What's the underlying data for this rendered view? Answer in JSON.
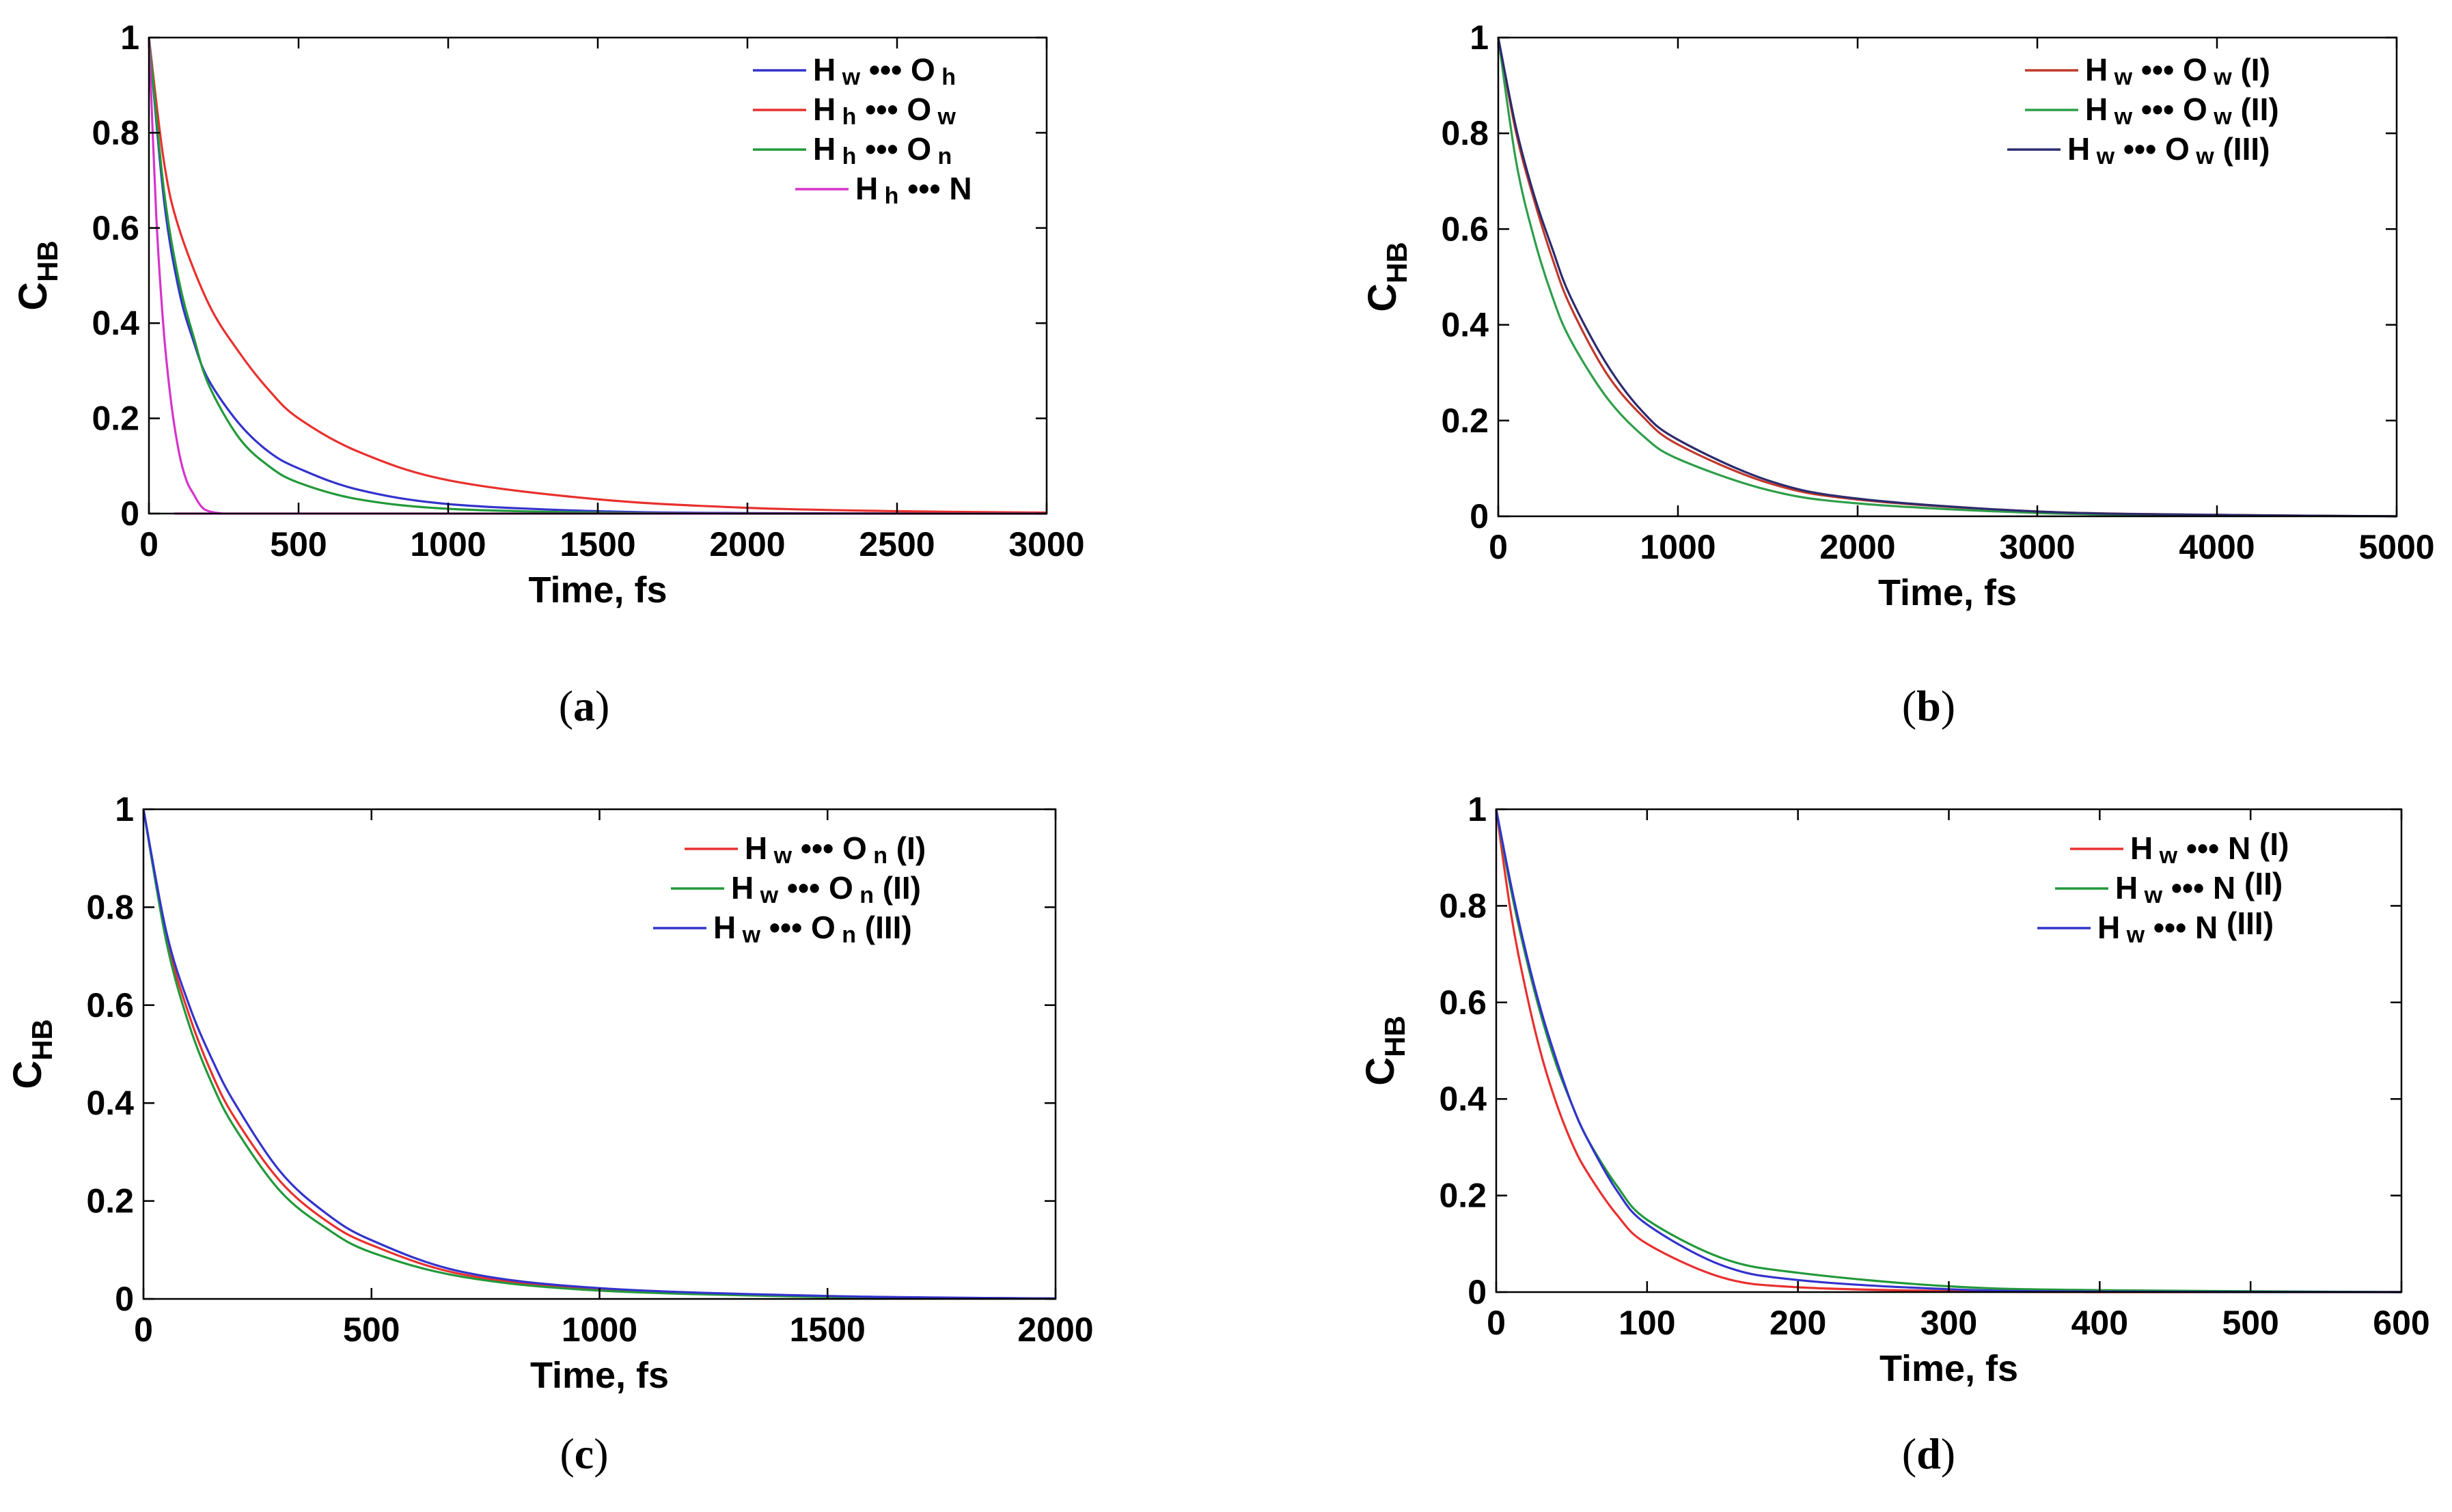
{
  "chart_data": [
    {
      "type": "line",
      "panel_label": "a",
      "xlabel": "Time, fs",
      "ylabel": "C",
      "ylabel_sub": "HB",
      "xlim": [
        0,
        3000
      ],
      "ylim": [
        0,
        1
      ],
      "xticks": [
        0,
        500,
        1000,
        1500,
        2000,
        2500,
        3000
      ],
      "yticks": [
        0,
        0.2,
        0.4,
        0.6,
        0.8,
        1
      ],
      "ytick_labels": [
        "0",
        "0.2",
        "0.4",
        "0.6",
        "0.8",
        "1"
      ],
      "legend_position": "top-right",
      "series": [
        {
          "name": "Hw•••Oh",
          "legend": {
            "a": "H",
            "as": "w",
            "b": "O",
            "bs": "h",
            "suffix": ""
          },
          "color": "#3333cc",
          "x": [
            0,
            50,
            100,
            150,
            200,
            300,
            400,
            500,
            700,
            1000,
            1500,
            2000,
            3000
          ],
          "y": [
            1.0,
            0.66,
            0.47,
            0.36,
            0.28,
            0.19,
            0.13,
            0.095,
            0.05,
            0.02,
            0.005,
            0.001,
            0.0
          ]
        },
        {
          "name": "Hh•••Ow",
          "legend": {
            "a": "H",
            "as": "h",
            "b": "O",
            "bs": "w",
            "suffix": ""
          },
          "color": "#e8302e",
          "x": [
            0,
            50,
            100,
            200,
            300,
            400,
            500,
            700,
            1000,
            1500,
            2000,
            2500,
            3000
          ],
          "y": [
            1.0,
            0.74,
            0.6,
            0.44,
            0.34,
            0.26,
            0.2,
            0.13,
            0.07,
            0.03,
            0.012,
            0.005,
            0.002
          ]
        },
        {
          "name": "Hh•••On",
          "legend": {
            "a": "H",
            "as": "h",
            "b": "O",
            "bs": "n",
            "suffix": ""
          },
          "color": "#22993a",
          "x": [
            0,
            50,
            100,
            150,
            200,
            300,
            400,
            500,
            700,
            1000,
            1500,
            2000,
            3000
          ],
          "y": [
            1.0,
            0.68,
            0.49,
            0.37,
            0.27,
            0.16,
            0.1,
            0.065,
            0.03,
            0.01,
            0.002,
            0.0,
            0.0
          ]
        },
        {
          "name": "Hh•••N",
          "legend": {
            "a": "H",
            "as": "h",
            "b": "N",
            "bs": "",
            "suffix": ""
          },
          "color": "#d633cc",
          "x": [
            0,
            25,
            50,
            75,
            100,
            125,
            150,
            175,
            200,
            250,
            300,
            3000
          ],
          "y": [
            1.0,
            0.62,
            0.38,
            0.23,
            0.13,
            0.07,
            0.04,
            0.015,
            0.005,
            0.0,
            0.0,
            0.0
          ]
        }
      ]
    },
    {
      "type": "line",
      "panel_label": "b",
      "xlabel": "Time, fs",
      "ylabel": "C",
      "ylabel_sub": "HB",
      "xlim": [
        0,
        5000
      ],
      "ylim": [
        0,
        1
      ],
      "xticks": [
        0,
        1000,
        2000,
        3000,
        4000,
        5000
      ],
      "yticks": [
        0,
        0.2,
        0.4,
        0.6,
        0.8,
        1
      ],
      "ytick_labels": [
        "0",
        "0.2",
        "0.4",
        "0.6",
        "0.8",
        "1"
      ],
      "legend_position": "top-right",
      "series": [
        {
          "name": "Hw•••Ow (I)",
          "legend": {
            "a": "H",
            "as": "w",
            "b": "O",
            "bs": "w",
            "suffix": "(I)"
          },
          "color": "#c0392b",
          "x": [
            0,
            100,
            200,
            300,
            400,
            600,
            800,
            1000,
            1500,
            2000,
            3000,
            4000,
            5000
          ],
          "y": [
            1.0,
            0.8,
            0.66,
            0.54,
            0.44,
            0.3,
            0.21,
            0.15,
            0.07,
            0.035,
            0.01,
            0.003,
            0.0
          ]
        },
        {
          "name": "Hw•••Ow (II)",
          "legend": {
            "a": "H",
            "as": "w",
            "b": "O",
            "bs": "w",
            "suffix": "(II)"
          },
          "color": "#2e9e4a",
          "x": [
            0,
            100,
            200,
            300,
            400,
            600,
            800,
            1000,
            1500,
            2000,
            3000,
            4000,
            5000
          ],
          "y": [
            1.0,
            0.74,
            0.58,
            0.46,
            0.37,
            0.25,
            0.17,
            0.12,
            0.055,
            0.027,
            0.007,
            0.002,
            0.0
          ]
        },
        {
          "name": "Hw•••Ow (III)",
          "legend": {
            "a": "H",
            "as": "w",
            "b": "O",
            "bs": "w",
            "suffix": "(III)"
          },
          "color": "#2b2b6e",
          "x": [
            0,
            100,
            200,
            300,
            400,
            600,
            800,
            1000,
            1500,
            2000,
            3000,
            4000,
            5000
          ],
          "y": [
            1.0,
            0.81,
            0.67,
            0.56,
            0.46,
            0.32,
            0.22,
            0.16,
            0.075,
            0.037,
            0.01,
            0.003,
            0.0
          ]
        }
      ]
    },
    {
      "type": "line",
      "panel_label": "c",
      "xlabel": "Time, fs",
      "ylabel": "C",
      "ylabel_sub": "HB",
      "xlim": [
        0,
        2000
      ],
      "ylim": [
        0,
        1
      ],
      "xticks": [
        0,
        500,
        1000,
        1500,
        2000
      ],
      "yticks": [
        0,
        0.2,
        0.4,
        0.6,
        0.8,
        1
      ],
      "ytick_labels": [
        "0",
        "0.2",
        "0.4",
        "0.6",
        "0.8",
        "1"
      ],
      "legend_position": "top-right",
      "series": [
        {
          "name": "Hw•••On (I)",
          "legend": {
            "a": "H",
            "as": "w",
            "b": "O",
            "bs": "n",
            "suffix": "(I)"
          },
          "color": "#e8302e",
          "x": [
            0,
            50,
            100,
            150,
            200,
            300,
            400,
            500,
            700,
            1000,
            1500,
            2000
          ],
          "y": [
            1.0,
            0.74,
            0.58,
            0.46,
            0.37,
            0.24,
            0.16,
            0.11,
            0.05,
            0.02,
            0.005,
            0.001
          ]
        },
        {
          "name": "Hw•••On (II)",
          "legend": {
            "a": "H",
            "as": "w",
            "b": "O",
            "bs": "n",
            "suffix": "(II)"
          },
          "color": "#22993a",
          "x": [
            0,
            50,
            100,
            150,
            200,
            300,
            400,
            500,
            700,
            1000,
            1500,
            2000
          ],
          "y": [
            1.0,
            0.73,
            0.56,
            0.44,
            0.35,
            0.22,
            0.145,
            0.095,
            0.045,
            0.017,
            0.004,
            0.001
          ]
        },
        {
          "name": "Hw•••On (III)",
          "legend": {
            "a": "H",
            "as": "w",
            "b": "O",
            "bs": "n",
            "suffix": "(III)"
          },
          "color": "#3333cc",
          "x": [
            0,
            50,
            100,
            150,
            200,
            300,
            400,
            500,
            700,
            1000,
            1500,
            2000
          ],
          "y": [
            1.0,
            0.75,
            0.6,
            0.49,
            0.4,
            0.26,
            0.175,
            0.12,
            0.055,
            0.022,
            0.006,
            0.001
          ]
        }
      ]
    },
    {
      "type": "line",
      "panel_label": "d",
      "xlabel": "Time, fs",
      "ylabel": "C",
      "ylabel_sub": "HB",
      "xlim": [
        0,
        600
      ],
      "ylim": [
        0,
        1
      ],
      "xticks": [
        0,
        100,
        200,
        300,
        400,
        500,
        600
      ],
      "yticks": [
        0,
        0.2,
        0.4,
        0.6,
        0.8,
        1
      ],
      "ytick_labels": [
        "0",
        "0.2",
        "0.4",
        "0.6",
        "0.8",
        "1"
      ],
      "legend_position": "top-right",
      "series": [
        {
          "name": "Hw•••N (I)",
          "legend": {
            "a": "H",
            "as": "w",
            "b": "N",
            "bs": "",
            "suffix": "(I)"
          },
          "color": "#e8302e",
          "x": [
            0,
            10,
            20,
            30,
            40,
            50,
            60,
            80,
            100,
            150,
            200,
            300,
            400,
            600
          ],
          "y": [
            1.0,
            0.78,
            0.62,
            0.49,
            0.39,
            0.31,
            0.25,
            0.16,
            0.1,
            0.03,
            0.01,
            0.002,
            0.0,
            0.0
          ]
        },
        {
          "name": "Hw•••N (II)",
          "legend": {
            "a": "H",
            "as": "w",
            "b": "N",
            "bs": "",
            "suffix": "(II)"
          },
          "color": "#22993a",
          "x": [
            0,
            10,
            20,
            30,
            40,
            50,
            60,
            80,
            100,
            150,
            200,
            300,
            400,
            600
          ],
          "y": [
            1.0,
            0.83,
            0.69,
            0.57,
            0.47,
            0.39,
            0.32,
            0.22,
            0.15,
            0.07,
            0.04,
            0.012,
            0.004,
            0.0
          ]
        },
        {
          "name": "Hw•••N (III)",
          "legend": {
            "a": "H",
            "as": "w",
            "b": "N",
            "bs": "",
            "suffix": "(III)"
          },
          "color": "#3333cc",
          "x": [
            0,
            10,
            20,
            30,
            40,
            50,
            60,
            80,
            100,
            150,
            200,
            300,
            400,
            600
          ],
          "y": [
            1.0,
            0.84,
            0.7,
            0.58,
            0.48,
            0.39,
            0.32,
            0.21,
            0.14,
            0.055,
            0.025,
            0.006,
            0.001,
            0.0
          ]
        }
      ]
    }
  ]
}
